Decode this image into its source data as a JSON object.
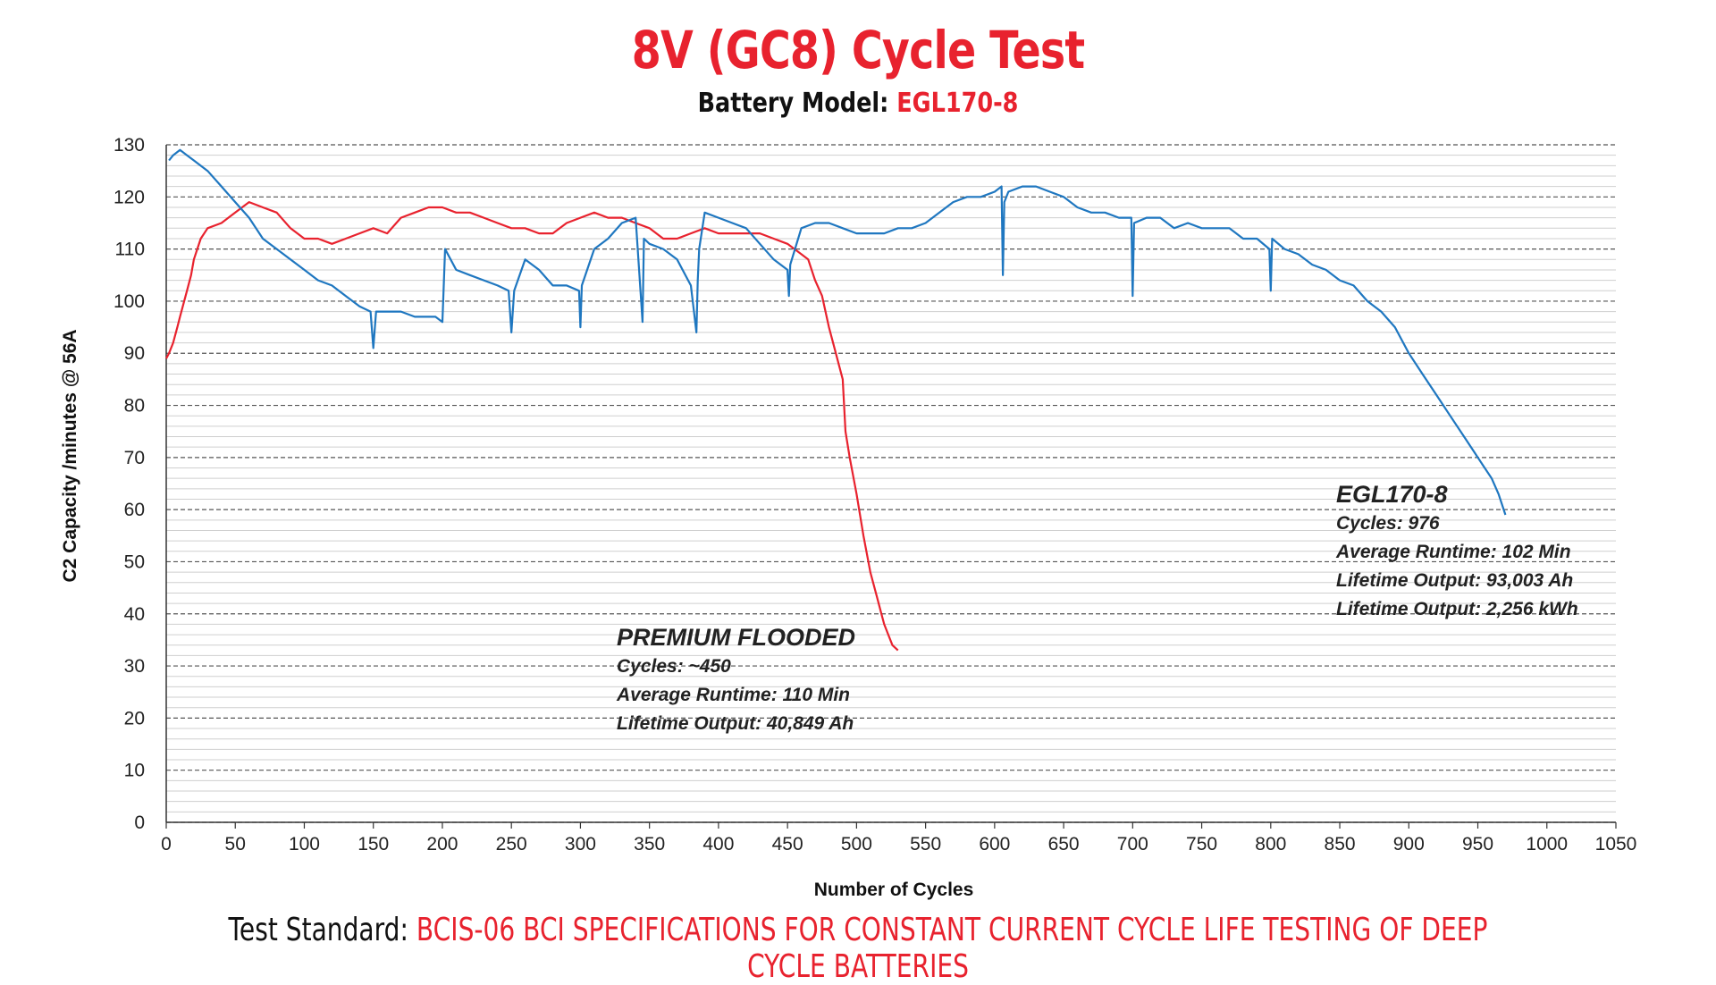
{
  "header": {
    "title": "8V (GC8) Cycle Test",
    "subtitle_label": "Battery Model:",
    "subtitle_value": "EGL170-8"
  },
  "footer": {
    "label": "Test Standard:",
    "value": "BCIS-06 BCI SPECIFICATIONS FOR CONSTANT CURRENT CYCLE LIFE TESTING OF DEEP CYCLE BATTERIES"
  },
  "colors": {
    "title_red": "#e8222e",
    "egl_blue": "#1f77c0",
    "flooded_red": "#e8222e",
    "grid_major": "#555555",
    "grid_minor": "#cfcfcf"
  },
  "chart_data": {
    "type": "line",
    "title": "8V (GC8) Cycle Test",
    "xlabel": "Number of Cycles",
    "ylabel": "C2 Capacity  /minutes @ 56A",
    "xlim": [
      0,
      1050
    ],
    "ylim": [
      0,
      130
    ],
    "x_ticks": [
      "0",
      "50",
      "100",
      "150",
      "200",
      "250",
      "300",
      "350",
      "400",
      "450",
      "500",
      "550",
      "600",
      "650",
      "700",
      "750",
      "800",
      "850",
      "900",
      "950",
      "1000",
      "1050"
    ],
    "y_ticks": [
      "0",
      "10",
      "20",
      "30",
      "40",
      "50",
      "60",
      "70",
      "80",
      "90",
      "100",
      "110",
      "120",
      "130"
    ],
    "grid": "horizontal dashed, major every 10, minor every 2",
    "series": [
      {
        "name": "EGL170-8",
        "color": "#1f77c0",
        "x": [
          2,
          5,
          10,
          15,
          20,
          30,
          40,
          50,
          60,
          70,
          80,
          90,
          100,
          110,
          120,
          130,
          140,
          148,
          150,
          152,
          160,
          170,
          180,
          190,
          195,
          200,
          202,
          210,
          220,
          230,
          240,
          248,
          250,
          252,
          260,
          270,
          280,
          290,
          299,
          300,
          301,
          310,
          320,
          330,
          340,
          344,
          345,
          346,
          350,
          360,
          370,
          380,
          384,
          385,
          386,
          390,
          400,
          410,
          420,
          430,
          440,
          450,
          451,
          452,
          460,
          470,
          480,
          490,
          500,
          510,
          520,
          530,
          540,
          550,
          560,
          570,
          580,
          590,
          600,
          605,
          606,
          607,
          610,
          620,
          630,
          640,
          650,
          660,
          670,
          680,
          690,
          699,
          700,
          701,
          710,
          720,
          730,
          740,
          750,
          760,
          770,
          780,
          790,
          799,
          800,
          801,
          810,
          820,
          830,
          840,
          850,
          860,
          870,
          880,
          890,
          900,
          910,
          920,
          930,
          940,
          950,
          955,
          960,
          965,
          970
        ],
        "y": [
          127,
          128,
          129,
          128,
          127,
          125,
          122,
          119,
          116,
          112,
          110,
          108,
          106,
          104,
          103,
          101,
          99,
          98,
          91,
          98,
          98,
          98,
          97,
          97,
          97,
          96,
          110,
          106,
          105,
          104,
          103,
          102,
          94,
          102,
          108,
          106,
          103,
          103,
          102,
          95,
          103,
          110,
          112,
          115,
          116,
          100,
          96,
          112,
          111,
          110,
          108,
          103,
          94,
          104,
          110,
          117,
          116,
          115,
          114,
          111,
          108,
          106,
          101,
          107,
          114,
          115,
          115,
          114,
          113,
          113,
          113,
          114,
          114,
          115,
          117,
          119,
          120,
          120,
          121,
          122,
          105,
          119,
          121,
          122,
          122,
          121,
          120,
          118,
          117,
          117,
          116,
          116,
          101,
          115,
          116,
          116,
          114,
          115,
          114,
          114,
          114,
          112,
          112,
          110,
          102,
          112,
          110,
          109,
          107,
          106,
          104,
          103,
          100,
          98,
          95,
          90,
          86,
          82,
          78,
          74,
          70,
          68,
          66,
          63,
          59
        ]
      },
      {
        "name": "PREMIUM FLOODED",
        "color": "#e8222e",
        "x": [
          0,
          2,
          5,
          8,
          10,
          12,
          15,
          18,
          20,
          25,
          30,
          40,
          50,
          60,
          70,
          80,
          90,
          100,
          110,
          120,
          130,
          140,
          150,
          160,
          170,
          180,
          190,
          200,
          210,
          220,
          230,
          240,
          250,
          260,
          270,
          280,
          290,
          300,
          310,
          320,
          330,
          340,
          350,
          360,
          370,
          380,
          390,
          400,
          410,
          420,
          430,
          440,
          450,
          455,
          460,
          465,
          470,
          475,
          480,
          485,
          490,
          492,
          495,
          500,
          505,
          510,
          515,
          518,
          520,
          523,
          526,
          530
        ],
        "y": [
          89,
          90,
          92,
          95,
          97,
          99,
          102,
          105,
          108,
          112,
          114,
          115,
          117,
          119,
          118,
          117,
          114,
          112,
          112,
          111,
          112,
          113,
          114,
          113,
          116,
          117,
          118,
          118,
          117,
          117,
          116,
          115,
          114,
          114,
          113,
          113,
          115,
          116,
          117,
          116,
          116,
          115,
          114,
          112,
          112,
          113,
          114,
          113,
          113,
          113,
          113,
          112,
          111,
          110,
          109,
          108,
          104,
          101,
          95,
          90,
          85,
          75,
          70,
          63,
          55,
          48,
          43,
          40,
          38,
          36,
          34,
          33
        ]
      }
    ],
    "annotations": [
      {
        "series": "PREMIUM FLOODED",
        "title": "PREMIUM FLOODED",
        "lines": [
          "Cycles: ~450",
          "Average Runtime: 110 Min",
          "Lifetime Output: 40,849 Ah"
        ]
      },
      {
        "series": "EGL170-8",
        "title": "EGL170-8",
        "lines": [
          "Cycles: 976",
          "Average Runtime: 102 Min",
          "Lifetime Output: 93,003 Ah",
          "Lifetime Output: 2,256 kWh"
        ]
      }
    ]
  }
}
